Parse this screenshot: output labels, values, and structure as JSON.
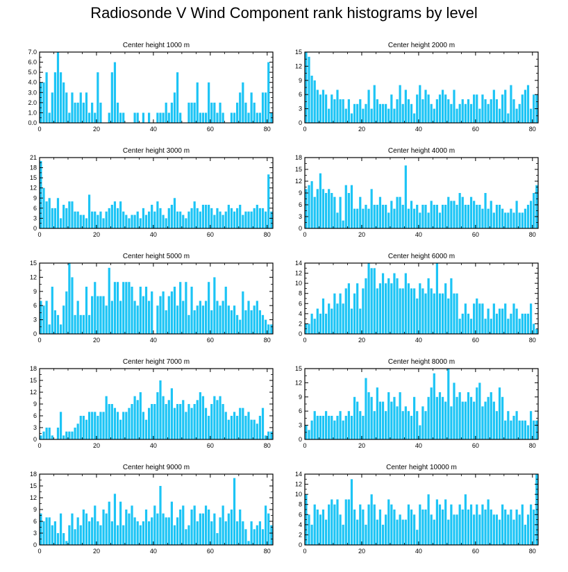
{
  "title": "Radiosonde V Wind Component rank histograms by level",
  "bar_color": "#1cc4f5",
  "chart_data": [
    {
      "type": "bar",
      "title": "Center height 1000 m",
      "xlim": [
        0,
        82
      ],
      "ylim": [
        0,
        7
      ],
      "yticks": [
        "0.0",
        "1.0",
        "2.0",
        "3.0",
        "4.0",
        "5.0",
        "6.0",
        "7.0"
      ],
      "xticks": [
        "0",
        "20",
        "40",
        "60",
        "80"
      ],
      "values": [
        4,
        4,
        5,
        1,
        3,
        5,
        7,
        5,
        4,
        3,
        1,
        3,
        2,
        2,
        3,
        2,
        3,
        1,
        2,
        1,
        5,
        2,
        0,
        0,
        1,
        5,
        6,
        2,
        1,
        1,
        0,
        0,
        0,
        1,
        1,
        0,
        1,
        0,
        1,
        0,
        0,
        1,
        1,
        1,
        2,
        1,
        2,
        3,
        5,
        1,
        0,
        0,
        2,
        2,
        2,
        4,
        1,
        1,
        1,
        4,
        2,
        2,
        1,
        2,
        1,
        0,
        0,
        1,
        1,
        2,
        3,
        4,
        2,
        1,
        3,
        2,
        1,
        1,
        3,
        3,
        6,
        1
      ]
    },
    {
      "type": "bar",
      "title": "Center height 2000 m",
      "xlim": [
        0,
        82
      ],
      "ylim": [
        0,
        15
      ],
      "yticks": [
        "0",
        "3",
        "6",
        "9",
        "12",
        "15"
      ],
      "xticks": [
        "0",
        "20",
        "40",
        "60",
        "80"
      ],
      "values": [
        15,
        14,
        10,
        9,
        7,
        6,
        7,
        6,
        3,
        6,
        5,
        7,
        5,
        5,
        3,
        5,
        2,
        4,
        4,
        5,
        3,
        4,
        7,
        3,
        8,
        5,
        4,
        4,
        4,
        3,
        6,
        3,
        5,
        8,
        4,
        7,
        5,
        4,
        2,
        6,
        8,
        5,
        7,
        6,
        4,
        3,
        5,
        6,
        7,
        6,
        5,
        4,
        7,
        3,
        4,
        5,
        4,
        5,
        4,
        6,
        6,
        3,
        6,
        5,
        4,
        5,
        7,
        5,
        3,
        6,
        7,
        2,
        8,
        5,
        3,
        4,
        6,
        7,
        8,
        3,
        6,
        6
      ]
    },
    {
      "type": "bar",
      "title": "Center height 3000 m",
      "xlim": [
        0,
        82
      ],
      "ylim": [
        0,
        21
      ],
      "yticks": [
        "0",
        "3",
        "6",
        "9",
        "12",
        "15",
        "18",
        "21"
      ],
      "xticks": [
        "0",
        "20",
        "40",
        "60",
        "80"
      ],
      "values": [
        20,
        12,
        8,
        9,
        6,
        6,
        9,
        3,
        7,
        6,
        8,
        8,
        5,
        5,
        4,
        4,
        3,
        10,
        5,
        5,
        4,
        5,
        3,
        5,
        6,
        7,
        8,
        6,
        8,
        5,
        4,
        3,
        4,
        4,
        5,
        3,
        6,
        4,
        5,
        7,
        5,
        8,
        6,
        4,
        3,
        6,
        7,
        9,
        5,
        5,
        4,
        3,
        5,
        6,
        8,
        6,
        5,
        7,
        7,
        7,
        6,
        4,
        6,
        5,
        4,
        5,
        7,
        6,
        5,
        6,
        7,
        4,
        5,
        5,
        5,
        6,
        7,
        6,
        6,
        5,
        16,
        5
      ]
    },
    {
      "type": "bar",
      "title": "Center height 4000 m",
      "xlim": [
        0,
        82
      ],
      "ylim": [
        0,
        18
      ],
      "yticks": [
        "0",
        "3",
        "6",
        "9",
        "12",
        "15",
        "18"
      ],
      "xticks": [
        "0",
        "20",
        "40",
        "60",
        "80"
      ],
      "values": [
        10,
        11,
        12,
        8,
        10,
        14,
        10,
        9,
        10,
        9,
        8,
        4,
        8,
        2,
        11,
        9,
        11,
        5,
        5,
        8,
        5,
        6,
        5,
        10,
        6,
        6,
        8,
        6,
        6,
        4,
        7,
        5,
        8,
        8,
        6,
        16,
        5,
        7,
        5,
        6,
        4,
        6,
        6,
        4,
        7,
        6,
        6,
        4,
        6,
        6,
        8,
        7,
        7,
        6,
        9,
        8,
        6,
        6,
        8,
        7,
        6,
        6,
        5,
        9,
        5,
        7,
        4,
        6,
        6,
        5,
        4,
        4,
        5,
        4,
        7,
        4,
        4,
        5,
        6,
        7,
        9,
        11
      ]
    },
    {
      "type": "bar",
      "title": "Center height 5000 m",
      "xlim": [
        0,
        82
      ],
      "ylim": [
        0,
        15
      ],
      "yticks": [
        "0",
        "3",
        "6",
        "9",
        "12",
        "15"
      ],
      "xticks": [
        "0",
        "20",
        "40",
        "60",
        "80"
      ],
      "values": [
        7,
        6,
        7,
        2,
        10,
        5,
        4,
        2,
        6,
        9,
        15,
        12,
        4,
        7,
        4,
        4,
        10,
        4,
        8,
        11,
        8,
        8,
        8,
        6,
        14,
        7,
        11,
        11,
        7,
        11,
        11,
        11,
        10,
        7,
        6,
        10,
        8,
        10,
        7,
        9,
        0,
        6,
        8,
        9,
        5,
        8,
        9,
        10,
        6,
        11,
        7,
        11,
        4,
        10,
        5,
        6,
        7,
        6,
        7,
        11,
        5,
        12,
        7,
        6,
        7,
        10,
        6,
        5,
        6,
        4,
        3,
        9,
        5,
        7,
        5,
        6,
        7,
        5,
        4,
        3,
        2,
        2
      ]
    },
    {
      "type": "bar",
      "title": "Center height 6000 m",
      "xlim": [
        0,
        82
      ],
      "ylim": [
        0,
        14
      ],
      "yticks": [
        "0",
        "2",
        "4",
        "6",
        "8",
        "10",
        "12",
        "14"
      ],
      "xticks": [
        "0",
        "20",
        "40",
        "60",
        "80"
      ],
      "values": [
        2,
        2,
        4,
        3,
        5,
        4,
        7,
        4,
        6,
        5,
        8,
        6,
        8,
        6,
        9,
        10,
        5,
        8,
        10,
        5,
        9,
        11,
        14,
        13,
        13,
        9,
        10,
        12,
        10,
        11,
        10,
        12,
        11,
        9,
        9,
        12,
        10,
        9,
        9,
        7,
        10,
        9,
        8,
        11,
        9,
        8,
        14,
        8,
        8,
        10,
        7,
        11,
        8,
        8,
        3,
        4,
        6,
        4,
        3,
        6,
        7,
        6,
        6,
        3,
        5,
        3,
        6,
        4,
        5,
        5,
        6,
        3,
        4,
        6,
        5,
        3,
        4,
        4,
        4,
        6,
        2,
        1
      ]
    },
    {
      "type": "bar",
      "title": "Center height 7000 m",
      "xlim": [
        0,
        82
      ],
      "ylim": [
        0,
        18
      ],
      "yticks": [
        "0",
        "3",
        "6",
        "9",
        "12",
        "15",
        "18"
      ],
      "xticks": [
        "0",
        "20",
        "40",
        "60",
        "80"
      ],
      "values": [
        1,
        2,
        3,
        3,
        1,
        0,
        3,
        7,
        1,
        2,
        2,
        2,
        3,
        4,
        6,
        6,
        5,
        7,
        7,
        7,
        6,
        7,
        7,
        11,
        9,
        9,
        8,
        7,
        5,
        7,
        7,
        8,
        9,
        11,
        10,
        12,
        7,
        5,
        8,
        9,
        9,
        12,
        15,
        11,
        9,
        10,
        13,
        8,
        9,
        9,
        10,
        7,
        9,
        8,
        9,
        10,
        12,
        11,
        8,
        6,
        9,
        11,
        10,
        11,
        9,
        7,
        5,
        6,
        7,
        6,
        8,
        8,
        6,
        7,
        5,
        5,
        4,
        6,
        8,
        1,
        2,
        2
      ]
    },
    {
      "type": "bar",
      "title": "Center height 8000 m",
      "xlim": [
        0,
        82
      ],
      "ylim": [
        0,
        15
      ],
      "yticks": [
        "0",
        "3",
        "6",
        "9",
        "12",
        "15"
      ],
      "xticks": [
        "0",
        "20",
        "40",
        "60",
        "80"
      ],
      "values": [
        3,
        2,
        4,
        6,
        5,
        5,
        5,
        6,
        5,
        5,
        4,
        5,
        6,
        4,
        5,
        6,
        5,
        9,
        8,
        6,
        5,
        13,
        10,
        9,
        6,
        11,
        8,
        8,
        6,
        10,
        8,
        9,
        7,
        10,
        6,
        7,
        6,
        5,
        9,
        6,
        3,
        7,
        6,
        9,
        11,
        14,
        9,
        10,
        9,
        8,
        15,
        7,
        12,
        9,
        10,
        8,
        8,
        10,
        9,
        8,
        11,
        12,
        7,
        8,
        9,
        10,
        8,
        6,
        11,
        9,
        4,
        6,
        4,
        5,
        6,
        4,
        4,
        4,
        3,
        6,
        4,
        4
      ]
    },
    {
      "type": "bar",
      "title": "Center height 9000 m",
      "xlim": [
        0,
        82
      ],
      "ylim": [
        0,
        18
      ],
      "yticks": [
        "0",
        "3",
        "6",
        "9",
        "12",
        "15",
        "18"
      ],
      "xticks": [
        "0",
        "20",
        "40",
        "60",
        "80"
      ],
      "values": [
        8,
        6,
        7,
        7,
        5,
        6,
        3,
        8,
        3,
        1,
        5,
        8,
        4,
        7,
        5,
        9,
        8,
        6,
        7,
        10,
        6,
        5,
        9,
        8,
        11,
        6,
        13,
        5,
        11,
        5,
        9,
        8,
        10,
        7,
        6,
        5,
        6,
        9,
        6,
        7,
        10,
        8,
        15,
        8,
        7,
        7,
        11,
        5,
        7,
        9,
        10,
        4,
        5,
        9,
        10,
        6,
        8,
        8,
        10,
        9,
        6,
        8,
        3,
        7,
        10,
        6,
        8,
        9,
        17,
        6,
        9,
        6,
        4,
        1,
        6,
        4,
        5,
        6,
        4,
        10,
        8,
        5
      ]
    },
    {
      "type": "bar",
      "title": "Center height 10000 m",
      "xlim": [
        0,
        82
      ],
      "ylim": [
        0,
        14
      ],
      "yticks": [
        "0",
        "2",
        "4",
        "6",
        "8",
        "10",
        "12",
        "14"
      ],
      "xticks": [
        "0",
        "20",
        "40",
        "60",
        "80"
      ],
      "values": [
        10,
        6,
        4,
        8,
        7,
        6,
        7,
        5,
        8,
        9,
        8,
        9,
        6,
        4,
        9,
        9,
        13,
        7,
        5,
        8,
        7,
        4,
        8,
        10,
        8,
        5,
        7,
        4,
        6,
        9,
        8,
        7,
        5,
        6,
        5,
        5,
        8,
        7,
        6,
        3,
        8,
        7,
        7,
        10,
        6,
        5,
        9,
        8,
        7,
        9,
        5,
        8,
        6,
        6,
        8,
        7,
        10,
        7,
        8,
        6,
        8,
        6,
        8,
        7,
        9,
        7,
        6,
        6,
        5,
        8,
        7,
        6,
        7,
        5,
        7,
        6,
        8,
        4,
        6,
        8,
        7,
        14
      ]
    }
  ]
}
